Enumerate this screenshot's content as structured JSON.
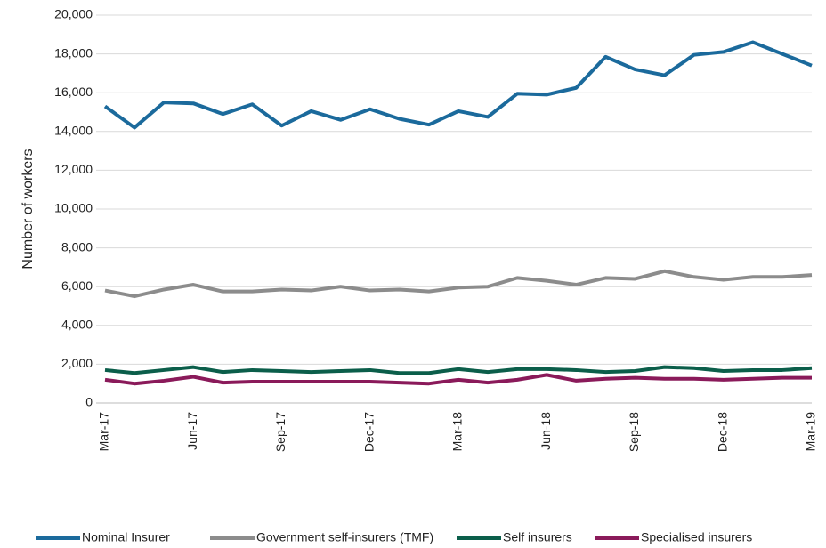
{
  "chart_data": {
    "type": "line",
    "y_label": "Number of workers",
    "categories": [
      "Mar-17",
      null,
      null,
      "Jun-17",
      null,
      null,
      "Sep-17",
      null,
      null,
      "Dec-17",
      null,
      null,
      "Mar-18",
      null,
      null,
      "Jun-18",
      null,
      null,
      "Sep-18",
      null,
      null,
      "Dec-18",
      null,
      null,
      "Mar-19"
    ],
    "series": [
      {
        "name": "Nominal Insurer",
        "color": "#1b6a9c",
        "values": [
          15300,
          14200,
          15500,
          15450,
          14900,
          15400,
          14300,
          15050,
          14600,
          15150,
          14650,
          14350,
          15050,
          14750,
          15950,
          15900,
          16250,
          17850,
          17200,
          16900,
          17950,
          18100,
          18600,
          18000,
          17400
        ]
      },
      {
        "name": "Government self-insurers (TMF)",
        "color": "#8c8c8c",
        "values": [
          5800,
          5500,
          5850,
          6100,
          5750,
          5750,
          5850,
          5800,
          6000,
          5800,
          5850,
          5750,
          5950,
          6000,
          6450,
          6300,
          6100,
          6450,
          6400,
          6800,
          6500,
          6350,
          6500,
          6500,
          6600
        ]
      },
      {
        "name": "Self insurers",
        "color": "#0b5e4a",
        "values": [
          1700,
          1550,
          1700,
          1850,
          1600,
          1700,
          1650,
          1600,
          1650,
          1700,
          1550,
          1550,
          1750,
          1600,
          1750,
          1750,
          1700,
          1600,
          1650,
          1850,
          1800,
          1650,
          1700,
          1700,
          1800
        ]
      },
      {
        "name": "Specialised insurers",
        "color": "#8a1a5a",
        "values": [
          1200,
          1000,
          1150,
          1350,
          1050,
          1100,
          1100,
          1100,
          1100,
          1100,
          1050,
          1000,
          1200,
          1050,
          1200,
          1450,
          1150,
          1250,
          1300,
          1250,
          1250,
          1200,
          1250,
          1300,
          1300
        ]
      }
    ],
    "ylim": [
      0,
      20000
    ],
    "yticks": [
      0,
      {
        "value": 2000,
        "label": "2,000"
      },
      {
        "value": 4000,
        "label": "4,000"
      },
      {
        "value": 6000,
        "label": "6,000"
      },
      {
        "value": 8000,
        "label": "8,000"
      },
      {
        "value": 10000,
        "label": "10,000"
      },
      {
        "value": 12000,
        "label": "12,000"
      },
      {
        "value": 14000,
        "label": "14,000"
      },
      {
        "value": 16000,
        "label": "16,000"
      },
      {
        "value": 18000,
        "label": "18,000"
      },
      {
        "value": 20000,
        "label": "20,000"
      }
    ],
    "grid": true,
    "legend": "bottom"
  }
}
